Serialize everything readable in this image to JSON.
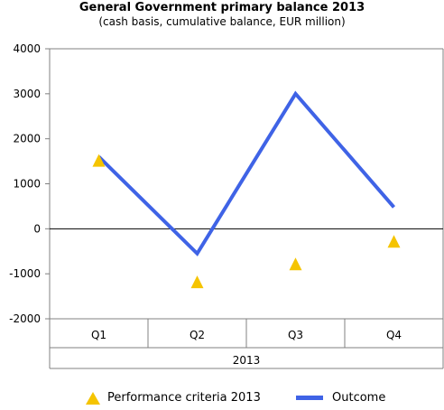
{
  "chart_data": {
    "type": "line",
    "title": "General Government primary balance 2013",
    "subtitle": "(cash basis, cumulative balance, EUR million)",
    "categories": [
      "Q1",
      "Q2",
      "Q3",
      "Q4"
    ],
    "group_label": "2013",
    "ylim": [
      -2000,
      4000
    ],
    "yticks": [
      "4000",
      "3000",
      "2000",
      "1000",
      "0",
      "-1000",
      "-2000"
    ],
    "series": [
      {
        "name": "Performance criteria 2013",
        "marker": "triangle",
        "color": "#f5c400",
        "values": [
          1500,
          -1200,
          -800,
          -300
        ]
      },
      {
        "name": "Outcome",
        "marker": "line",
        "color": "#3f63e6",
        "values": [
          1600,
          -550,
          3000,
          480
        ]
      }
    ],
    "grid": false,
    "legend_position": "bottom"
  }
}
